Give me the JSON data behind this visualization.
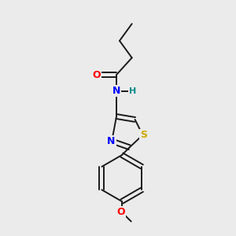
{
  "background_color": "#ebebeb",
  "bond_color": "#1a1a1a",
  "figsize": [
    3.0,
    3.0
  ],
  "dpi": 100,
  "atom_colors": {
    "O": "#ff0000",
    "N": "#0000ff",
    "S": "#ccaa00",
    "H": "#008888"
  },
  "bond_lw": 1.4,
  "font_size": 9
}
